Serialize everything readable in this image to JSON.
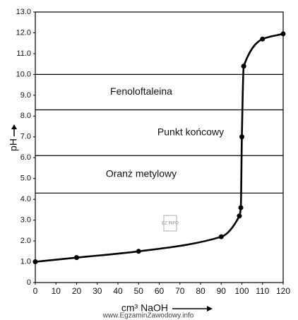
{
  "chart_data": {
    "type": "line",
    "x_label": "cm³ NaOH",
    "y_label": "pH",
    "x": [
      0,
      20,
      50,
      90,
      98.8,
      99.5,
      100,
      100.9,
      110,
      120
    ],
    "series": [
      {
        "color": "#000000",
        "values": [
          1.0,
          1.2,
          1.5,
          2.2,
          3.2,
          3.6,
          7.0,
          10.4,
          11.7,
          11.95
        ]
      }
    ],
    "xlim": [
      0,
      120
    ],
    "ylim": [
      0,
      13
    ],
    "xticks": [
      0,
      10,
      20,
      30,
      40,
      50,
      60,
      70,
      80,
      90,
      100,
      110,
      120
    ],
    "yticks": [
      0,
      {
        "value": 1,
        "label": "1.0"
      },
      {
        "value": 2,
        "label": "2.0"
      },
      {
        "value": 3,
        "label": "3.0"
      },
      {
        "value": 4,
        "label": "4.0"
      },
      {
        "value": 5,
        "label": "5.0"
      },
      {
        "value": 6,
        "label": "6.0"
      },
      {
        "value": 7,
        "label": "7.0"
      },
      {
        "value": 8,
        "label": "8.0"
      },
      {
        "value": 9,
        "label": "9.0"
      },
      {
        "value": 10,
        "label": "10.0"
      },
      {
        "value": 11,
        "label": "11.0"
      },
      {
        "value": 12,
        "label": "12.0"
      },
      {
        "value": 13,
        "label": "13.0"
      }
    ],
    "reference_lines": [
      10.0,
      8.3,
      6.1,
      4.3
    ],
    "region_labels": [
      "Fenoloftaleina",
      "Punkt końcowy",
      "Oranż metylowy"
    ],
    "logo": "EZ INFO",
    "watermark": "www.EgzaminZawodowy.info"
  }
}
